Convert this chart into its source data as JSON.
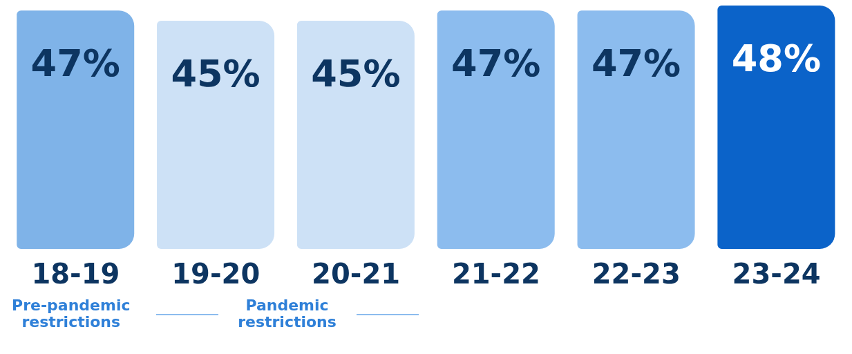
{
  "chart_data": {
    "type": "bar",
    "categories": [
      "18-19",
      "19-20",
      "20-21",
      "21-22",
      "22-23",
      "23-24"
    ],
    "values": [
      47,
      45,
      45,
      47,
      47,
      48
    ],
    "colors": [
      "#7fb3e8",
      "#cde1f6",
      "#cde1f6",
      "#8cbcee",
      "#8cbcee",
      "#0b63c9"
    ],
    "value_labels": [
      "47%",
      "45%",
      "45%",
      "47%",
      "47%",
      "48%"
    ],
    "annotations": [
      "Pre-pandemic restrictions",
      "Pandemic restrictions"
    ]
  }
}
